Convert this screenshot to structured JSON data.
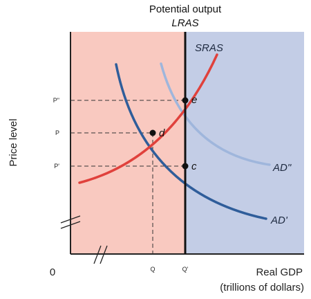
{
  "heading": {
    "line1": "Potential output",
    "line2": "LRAS"
  },
  "axes": {
    "y_title": "Price level",
    "x_title_line1": "Real GDP",
    "x_title_line2": "(trillions of dollars)",
    "origin": "0"
  },
  "curves": {
    "sras": "SRAS",
    "ad_prime": "AD'",
    "ad_double_prime": "AD\""
  },
  "price_ticks": {
    "p_double_prime": "P\"",
    "p": "P",
    "p_prime": "P'"
  },
  "output_ticks": {
    "q": "Q",
    "q_prime": "Q'"
  },
  "points": {
    "e": "e",
    "d": "d",
    "c": "c"
  },
  "colors": {
    "left_region": "#f9c9c0",
    "right_region": "#c3cde6",
    "sras": "#e0413c",
    "ad_prime": "#2f5d9a",
    "ad_double_prime": "#9fb6dc",
    "lras": "#111111"
  }
}
